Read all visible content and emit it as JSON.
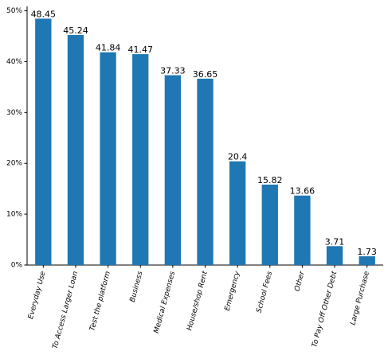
{
  "chart_data": {
    "type": "bar",
    "categories": [
      "Everyday Use",
      "To Access Larger Loan",
      "Test the platform",
      "Business",
      "Medical Expenses",
      "House/shop Rent",
      "Emergency",
      "School Fees",
      "Other",
      "To Pay Off Other Debt",
      "Large Purchase"
    ],
    "values": [
      48.45,
      45.24,
      41.84,
      41.47,
      37.33,
      36.65,
      20.4,
      15.82,
      13.66,
      3.71,
      1.73
    ],
    "color": "#1f77b4",
    "ylim": [
      0,
      50.87
    ],
    "yticks": [
      {
        "value": 0,
        "label": "0%"
      },
      {
        "value": 10,
        "label": "10%"
      },
      {
        "value": 20,
        "label": "20%"
      },
      {
        "value": 30,
        "label": "30%"
      },
      {
        "value": 40,
        "label": "40%"
      },
      {
        "value": 50,
        "label": "50%"
      }
    ],
    "grid": false
  }
}
